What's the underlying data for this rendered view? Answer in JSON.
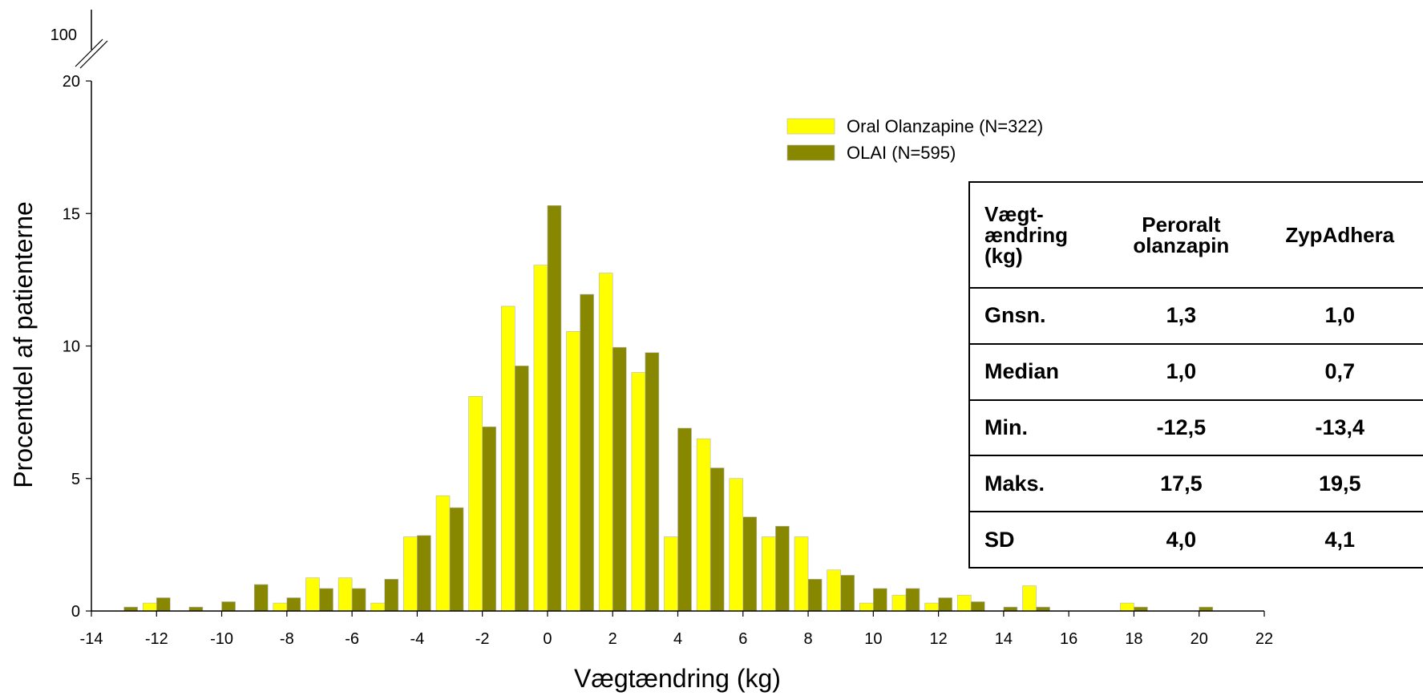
{
  "chart_data": {
    "type": "bar",
    "title": "",
    "xlabel": "Vægtændring (kg)",
    "ylabel": "Procentdel af patienterne",
    "xlim": [
      -14,
      22
    ],
    "ylim": [
      0,
      20
    ],
    "x_ticks": [
      "-14",
      "-12",
      "-10",
      "-8",
      "-6",
      "-4",
      "-2",
      "0",
      "2",
      "4",
      "6",
      "8",
      "10",
      "12",
      "14",
      "16",
      "18",
      "20",
      "22"
    ],
    "y_ticks": [
      "0",
      "5",
      "10",
      "15",
      "20"
    ],
    "y_break_label": "100",
    "grid": false,
    "legend_position": "top-right",
    "x": [
      -13,
      -12,
      -11,
      -10,
      -9,
      -8,
      -7,
      -6,
      -5,
      -4,
      -3,
      -2,
      -1,
      0,
      1,
      2,
      3,
      4,
      5,
      6,
      7,
      8,
      9,
      10,
      11,
      12,
      13,
      14,
      15,
      16,
      17,
      18,
      19,
      20
    ],
    "series": [
      {
        "name": "Oral Olanzapine (N=322)",
        "color": "#ffff00",
        "values": [
          0,
          0.3,
          0,
          0,
          0,
          0.3,
          1.25,
          1.25,
          0.3,
          2.8,
          4.35,
          8.1,
          11.5,
          13.05,
          10.55,
          12.75,
          9.0,
          2.8,
          6.5,
          5.0,
          2.8,
          2.8,
          1.55,
          0.3,
          0.6,
          0.3,
          0.6,
          0,
          0.95,
          0,
          0,
          0.3,
          0,
          0
        ]
      },
      {
        "name": "OLAI (N=595)",
        "color": "#878700",
        "values": [
          0.15,
          0.5,
          0.15,
          0.35,
          1.0,
          0.5,
          0.85,
          0.85,
          1.2,
          2.85,
          3.9,
          6.95,
          9.25,
          15.3,
          11.95,
          9.95,
          9.75,
          6.9,
          5.4,
          3.55,
          3.2,
          1.2,
          1.35,
          0.85,
          0.85,
          0.5,
          0.35,
          0.15,
          0.15,
          0,
          0,
          0.15,
          0,
          0.15
        ]
      }
    ]
  },
  "stats_table": {
    "headers": [
      "Vægt-\nændring\n(kg)",
      "Peroralt\nolanzapin",
      "ZypAdhera"
    ],
    "rows": [
      [
        "Gnsn.",
        "1,3",
        "1,0"
      ],
      [
        "Median",
        "1,0",
        "0,7"
      ],
      [
        "Min.",
        "-12,5",
        "-13,4"
      ],
      [
        "Maks.",
        "17,5",
        "19,5"
      ],
      [
        "SD",
        "4,0",
        "4,1"
      ]
    ]
  }
}
